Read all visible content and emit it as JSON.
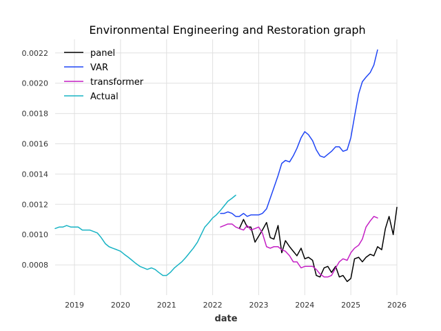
{
  "chart_data": {
    "type": "line",
    "title": "Environmental Engineering and Restoration graph",
    "xlabel": "date",
    "ylabel": "",
    "xlim": [
      2018.58,
      2026.0
    ],
    "ylim": [
      0.0006,
      0.00229
    ],
    "grid": true,
    "legend_position": "top-left",
    "x_ticks": [
      {
        "value": 2019,
        "label": "2019"
      },
      {
        "value": 2020,
        "label": "2020"
      },
      {
        "value": 2021,
        "label": "2021"
      },
      {
        "value": 2022,
        "label": "2022"
      },
      {
        "value": 2023,
        "label": "2023"
      },
      {
        "value": 2024,
        "label": "2024"
      },
      {
        "value": 2025,
        "label": "2025"
      },
      {
        "value": 2026,
        "label": "2026"
      }
    ],
    "y_ticks": [
      {
        "value": 0.0008,
        "label": "0.0008"
      },
      {
        "value": 0.001,
        "label": "0.0010"
      },
      {
        "value": 0.0012,
        "label": "0.0012"
      },
      {
        "value": 0.0014,
        "label": "0.0014"
      },
      {
        "value": 0.0016,
        "label": "0.0016"
      },
      {
        "value": 0.0018,
        "label": "0.0018"
      },
      {
        "value": 0.002,
        "label": "0.0020"
      },
      {
        "value": 0.0022,
        "label": "0.0022"
      }
    ],
    "series": [
      {
        "name": "panel",
        "color": "#000000",
        "points": [
          [
            2022.58,
            0.00104
          ],
          [
            2022.67,
            0.0011
          ],
          [
            2022.75,
            0.00105
          ],
          [
            2022.83,
            0.00105
          ],
          [
            2022.92,
            0.00095
          ],
          [
            2023.0,
            0.00099
          ],
          [
            2023.08,
            0.00103
          ],
          [
            2023.17,
            0.00108
          ],
          [
            2023.25,
            0.00098
          ],
          [
            2023.33,
            0.00097
          ],
          [
            2023.42,
            0.00106
          ],
          [
            2023.5,
            0.00088
          ],
          [
            2023.58,
            0.00096
          ],
          [
            2023.67,
            0.00092
          ],
          [
            2023.75,
            0.00089
          ],
          [
            2023.83,
            0.00086
          ],
          [
            2023.92,
            0.00091
          ],
          [
            2024.0,
            0.00084
          ],
          [
            2024.08,
            0.00085
          ],
          [
            2024.17,
            0.00083
          ],
          [
            2024.25,
            0.00073
          ],
          [
            2024.33,
            0.00072
          ],
          [
            2024.42,
            0.00078
          ],
          [
            2024.5,
            0.00079
          ],
          [
            2024.58,
            0.00075
          ],
          [
            2024.67,
            0.00079
          ],
          [
            2024.75,
            0.00072
          ],
          [
            2024.83,
            0.00073
          ],
          [
            2024.92,
            0.00069
          ],
          [
            2025.0,
            0.00071
          ],
          [
            2025.08,
            0.00084
          ],
          [
            2025.17,
            0.00085
          ],
          [
            2025.25,
            0.00082
          ],
          [
            2025.33,
            0.00085
          ],
          [
            2025.42,
            0.00087
          ],
          [
            2025.5,
            0.00086
          ],
          [
            2025.58,
            0.00092
          ],
          [
            2025.67,
            0.0009
          ],
          [
            2025.75,
            0.00104
          ],
          [
            2025.83,
            0.00112
          ],
          [
            2025.92,
            0.001
          ],
          [
            2026.0,
            0.00118
          ]
        ]
      },
      {
        "name": "VAR",
        "color": "#1f45f5",
        "points": [
          [
            2022.17,
            0.00114
          ],
          [
            2022.25,
            0.00114
          ],
          [
            2022.33,
            0.00115
          ],
          [
            2022.42,
            0.00114
          ],
          [
            2022.5,
            0.00112
          ],
          [
            2022.58,
            0.00112
          ],
          [
            2022.67,
            0.00114
          ],
          [
            2022.75,
            0.00112
          ],
          [
            2022.83,
            0.00113
          ],
          [
            2022.92,
            0.00113
          ],
          [
            2023.0,
            0.00113
          ],
          [
            2023.08,
            0.00114
          ],
          [
            2023.17,
            0.00117
          ],
          [
            2023.25,
            0.00124
          ],
          [
            2023.33,
            0.00131
          ],
          [
            2023.42,
            0.00139
          ],
          [
            2023.5,
            0.00147
          ],
          [
            2023.58,
            0.00149
          ],
          [
            2023.67,
            0.00148
          ],
          [
            2023.75,
            0.00152
          ],
          [
            2023.83,
            0.00157
          ],
          [
            2023.92,
            0.00164
          ],
          [
            2024.0,
            0.00168
          ],
          [
            2024.08,
            0.00166
          ],
          [
            2024.17,
            0.00162
          ],
          [
            2024.25,
            0.00156
          ],
          [
            2024.33,
            0.00152
          ],
          [
            2024.42,
            0.00151
          ],
          [
            2024.5,
            0.00153
          ],
          [
            2024.58,
            0.00155
          ],
          [
            2024.67,
            0.00158
          ],
          [
            2024.75,
            0.00158
          ],
          [
            2024.83,
            0.00155
          ],
          [
            2024.92,
            0.00156
          ],
          [
            2025.0,
            0.00164
          ],
          [
            2025.08,
            0.00178
          ],
          [
            2025.17,
            0.00193
          ],
          [
            2025.25,
            0.00201
          ],
          [
            2025.33,
            0.00204
          ],
          [
            2025.42,
            0.00207
          ],
          [
            2025.5,
            0.00212
          ],
          [
            2025.58,
            0.00222
          ]
        ]
      },
      {
        "name": "transformer",
        "color": "#c41fc4",
        "points": [
          [
            2022.17,
            0.00105
          ],
          [
            2022.25,
            0.00106
          ],
          [
            2022.33,
            0.00107
          ],
          [
            2022.42,
            0.00107
          ],
          [
            2022.5,
            0.00105
          ],
          [
            2022.58,
            0.00104
          ],
          [
            2022.67,
            0.00103
          ],
          [
            2022.75,
            0.00106
          ],
          [
            2022.83,
            0.00103
          ],
          [
            2022.92,
            0.00104
          ],
          [
            2023.0,
            0.00105
          ],
          [
            2023.08,
            0.00101
          ],
          [
            2023.17,
            0.00092
          ],
          [
            2023.25,
            0.00091
          ],
          [
            2023.33,
            0.00092
          ],
          [
            2023.42,
            0.00092
          ],
          [
            2023.5,
            0.0009
          ],
          [
            2023.58,
            0.00089
          ],
          [
            2023.67,
            0.00086
          ],
          [
            2023.75,
            0.00082
          ],
          [
            2023.83,
            0.00082
          ],
          [
            2023.92,
            0.00078
          ],
          [
            2024.0,
            0.00079
          ],
          [
            2024.08,
            0.00079
          ],
          [
            2024.17,
            0.00079
          ],
          [
            2024.25,
            0.00077
          ],
          [
            2024.33,
            0.00074
          ],
          [
            2024.42,
            0.00072
          ],
          [
            2024.5,
            0.00072
          ],
          [
            2024.58,
            0.00073
          ],
          [
            2024.67,
            0.00078
          ],
          [
            2024.75,
            0.00082
          ],
          [
            2024.83,
            0.00084
          ],
          [
            2024.92,
            0.00083
          ],
          [
            2025.0,
            0.00088
          ],
          [
            2025.08,
            0.00091
          ],
          [
            2025.17,
            0.00093
          ],
          [
            2025.25,
            0.00097
          ],
          [
            2025.33,
            0.00105
          ],
          [
            2025.42,
            0.00109
          ],
          [
            2025.5,
            0.00112
          ],
          [
            2025.58,
            0.00111
          ]
        ]
      },
      {
        "name": "Actual",
        "color": "#17b3c4",
        "points": [
          [
            2018.58,
            0.00104
          ],
          [
            2018.67,
            0.00105
          ],
          [
            2018.75,
            0.00105
          ],
          [
            2018.83,
            0.00106
          ],
          [
            2018.92,
            0.00105
          ],
          [
            2019.0,
            0.00105
          ],
          [
            2019.08,
            0.00105
          ],
          [
            2019.17,
            0.00103
          ],
          [
            2019.25,
            0.00103
          ],
          [
            2019.33,
            0.00103
          ],
          [
            2019.42,
            0.00102
          ],
          [
            2019.5,
            0.00101
          ],
          [
            2019.58,
            0.00098
          ],
          [
            2019.67,
            0.00094
          ],
          [
            2019.75,
            0.00092
          ],
          [
            2019.83,
            0.00091
          ],
          [
            2019.92,
            0.0009
          ],
          [
            2020.0,
            0.00089
          ],
          [
            2020.08,
            0.00087
          ],
          [
            2020.17,
            0.00085
          ],
          [
            2020.25,
            0.00083
          ],
          [
            2020.33,
            0.00081
          ],
          [
            2020.42,
            0.00079
          ],
          [
            2020.5,
            0.00078
          ],
          [
            2020.58,
            0.00077
          ],
          [
            2020.67,
            0.00078
          ],
          [
            2020.75,
            0.00077
          ],
          [
            2020.83,
            0.00075
          ],
          [
            2020.92,
            0.00073
          ],
          [
            2021.0,
            0.00073
          ],
          [
            2021.08,
            0.00075
          ],
          [
            2021.17,
            0.00078
          ],
          [
            2021.25,
            0.0008
          ],
          [
            2021.33,
            0.00082
          ],
          [
            2021.42,
            0.00085
          ],
          [
            2021.5,
            0.00088
          ],
          [
            2021.58,
            0.00091
          ],
          [
            2021.67,
            0.00095
          ],
          [
            2021.75,
            0.001
          ],
          [
            2021.83,
            0.00105
          ],
          [
            2021.92,
            0.00108
          ],
          [
            2022.0,
            0.00111
          ],
          [
            2022.08,
            0.00113
          ],
          [
            2022.17,
            0.00116
          ],
          [
            2022.25,
            0.00119
          ],
          [
            2022.33,
            0.00122
          ],
          [
            2022.42,
            0.00124
          ],
          [
            2022.5,
            0.00126
          ]
        ]
      }
    ]
  }
}
